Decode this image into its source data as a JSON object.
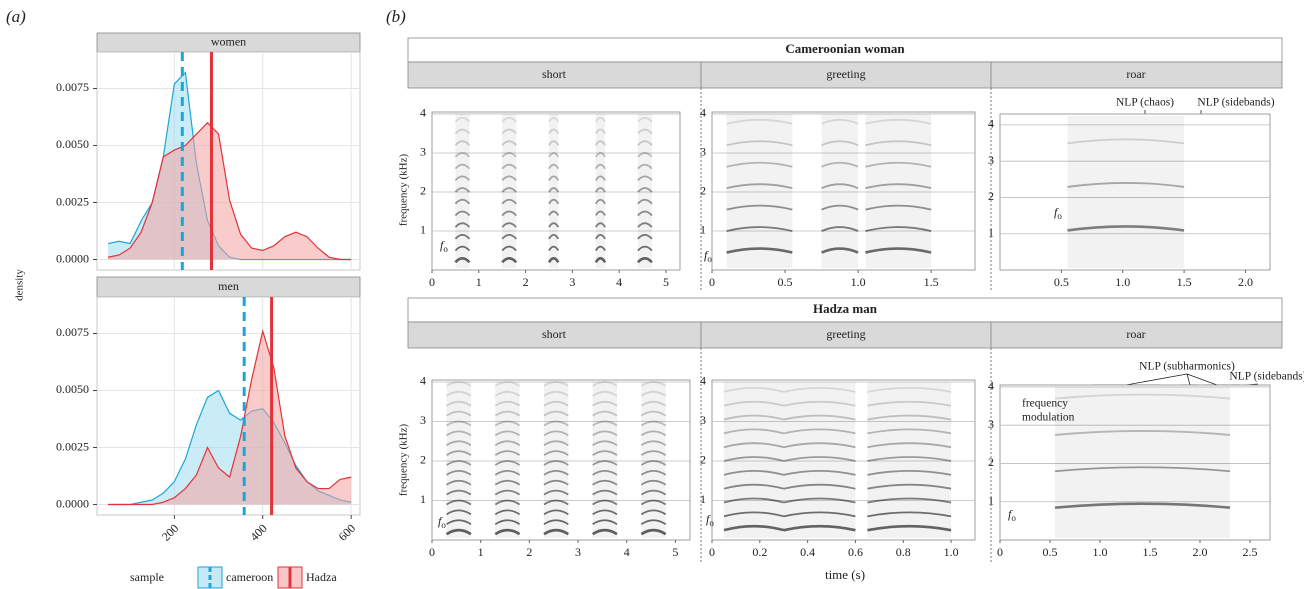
{
  "panel_labels": [
    "(a)",
    "(b)"
  ],
  "f0_symbol": {
    "base": "f",
    "sub": "o"
  },
  "panel_b": {
    "rows": [
      "Cameroonian woman",
      "Hadza man"
    ],
    "columns": [
      "short",
      "greeting",
      "roar"
    ],
    "x_label": "time (s)",
    "y_label": "frequency (kHz)"
  },
  "chart_data": [
    {
      "type": "density",
      "facet": "women",
      "y_label": "density",
      "legend_title": "sample",
      "x": [
        50,
        75,
        100,
        125,
        150,
        175,
        200,
        225,
        250,
        275,
        300,
        325,
        350,
        375,
        400,
        425,
        450,
        475,
        500,
        525,
        550,
        575,
        600
      ],
      "xlim": [
        25,
        620
      ],
      "xticks": [
        200,
        400,
        600
      ],
      "ylim": [
        -0.00046,
        0.0091
      ],
      "yticks": [
        {
          "value": 0,
          "label": "0.0000"
        },
        {
          "value": 0.0025,
          "label": "0.0025"
        },
        {
          "value": 0.005,
          "label": "0.0050"
        },
        {
          "value": 0.0075,
          "label": "0.0075"
        }
      ],
      "grid": true,
      "series": [
        {
          "name": "cameroon",
          "color": "#1ba6d8",
          "fill": "#9fdcf0",
          "line_style": "dashed",
          "mean": 218,
          "values": [
            0.0007,
            0.0008,
            0.0007,
            0.0017,
            0.0025,
            0.0045,
            0.0077,
            0.0082,
            0.0042,
            0.0017,
            0.0006,
            0.0001,
            0,
            0,
            0,
            0,
            0,
            0,
            0,
            0,
            0,
            0,
            0
          ]
        },
        {
          "name": "Hadza",
          "color": "#e3323a",
          "fill": "#f4a3a3",
          "line_style": "solid",
          "mean": 284,
          "values": [
            0.0001,
            0.0002,
            0.0005,
            0.0012,
            0.0025,
            0.0045,
            0.0048,
            0.005,
            0.0055,
            0.006,
            0.0055,
            0.0026,
            0.0011,
            0.0005,
            0.0004,
            0.0006,
            0.001,
            0.0012,
            0.001,
            0.0005,
            0.0001,
            0,
            0
          ]
        }
      ]
    },
    {
      "type": "density",
      "facet": "men",
      "x": [
        50,
        75,
        100,
        125,
        150,
        175,
        200,
        225,
        250,
        275,
        300,
        325,
        350,
        375,
        400,
        425,
        450,
        475,
        500,
        525,
        550,
        575,
        600
      ],
      "xlim": [
        25,
        620
      ],
      "xticks": [
        200,
        400,
        600
      ],
      "ylim": [
        -0.00046,
        0.0091
      ],
      "yticks": [
        {
          "value": 0,
          "label": "0.0000"
        },
        {
          "value": 0.0025,
          "label": "0.0025"
        },
        {
          "value": 0.005,
          "label": "0.0050"
        },
        {
          "value": 0.0075,
          "label": "0.0075"
        }
      ],
      "grid": true,
      "series": [
        {
          "color": "#1ba6d8",
          "fill": "#9fdcf0",
          "line_style": "dashed",
          "mean": 358,
          "values": [
            0,
            0,
            0,
            0.0001,
            0.0002,
            0.0005,
            0.001,
            0.002,
            0.0035,
            0.0047,
            0.005,
            0.004,
            0.0037,
            0.0041,
            0.0042,
            0.0036,
            0.0027,
            0.0017,
            0.001,
            0.0006,
            0.0004,
            0.0002,
            0.0001
          ]
        },
        {
          "color": "#e3323a",
          "fill": "#f4a3a3",
          "line_style": "solid",
          "mean": 420,
          "values": [
            0,
            0,
            0,
            0,
            0,
            0.0001,
            0.0003,
            0.0007,
            0.0013,
            0.0025,
            0.0016,
            0.0012,
            0.003,
            0.0055,
            0.0076,
            0.006,
            0.003,
            0.0016,
            0.001,
            0.0007,
            0.0007,
            0.0011,
            0.0012
          ]
        }
      ]
    },
    {
      "type": "spectrogram",
      "xlim": [
        0,
        5.3
      ],
      "xticks": [
        0,
        1,
        2,
        3,
        4,
        5
      ],
      "ylim": [
        0,
        4.05
      ],
      "yticks": [
        1,
        2,
        3,
        4
      ],
      "f0_khz": 0.3,
      "syllables": [
        [
          0.5,
          0.8
        ],
        [
          1.5,
          1.8
        ],
        [
          2.5,
          2.7
        ],
        [
          3.5,
          3.7
        ],
        [
          4.4,
          4.7
        ]
      ]
    },
    {
      "type": "spectrogram",
      "xlim": [
        0,
        1.8
      ],
      "xticks": [
        0,
        0.5,
        {
          "value": 1,
          "label": "1.0"
        },
        1.5
      ],
      "ylim": [
        0,
        4.05
      ],
      "yticks": [
        1,
        2,
        3,
        4
      ],
      "f0_khz": 0.55,
      "syllables": [
        [
          0.1,
          0.55
        ],
        [
          0.75,
          1.0
        ],
        [
          1.05,
          1.5
        ]
      ]
    },
    {
      "type": "spectrogram",
      "xlim": [
        0,
        2.2
      ],
      "xticks": [
        0.5,
        {
          "value": 1,
          "label": "1.0"
        },
        1.5,
        {
          "value": 2,
          "label": "2.0"
        }
      ],
      "ylim": [
        0,
        4.3
      ],
      "yticks": [
        1,
        2,
        3,
        4
      ],
      "f0_khz": 1.2,
      "syllables": [
        [
          0.55,
          1.5
        ]
      ],
      "annotations": [
        "NLP (chaos)",
        "NLP (sidebands)"
      ]
    },
    {
      "type": "spectrogram",
      "xlim": [
        0,
        5.3
      ],
      "xticks": [
        0,
        1,
        2,
        3,
        4,
        5
      ],
      "ylim": [
        0,
        4.05
      ],
      "yticks": [
        1,
        2,
        3,
        4
      ],
      "f0_khz": 0.25,
      "syllables": [
        [
          0.3,
          0.8
        ],
        [
          1.3,
          1.8
        ],
        [
          2.3,
          2.8
        ],
        [
          3.3,
          3.8
        ],
        [
          4.3,
          4.8
        ]
      ]
    },
    {
      "type": "spectrogram",
      "xlim": [
        0,
        1.1
      ],
      "xticks": [
        0,
        0.2,
        0.4,
        0.6,
        0.8,
        {
          "value": 1,
          "label": "1.0"
        }
      ],
      "ylim": [
        0,
        4.05
      ],
      "yticks": [
        1,
        2,
        3,
        4
      ],
      "f0_khz": 0.35,
      "syllables": [
        [
          0.05,
          0.3
        ],
        [
          0.3,
          0.6
        ],
        [
          0.65,
          1.0
        ]
      ]
    },
    {
      "type": "spectrogram",
      "xlim": [
        0,
        2.7
      ],
      "xticks": [
        0,
        0.5,
        {
          "value": 1,
          "label": "1.0"
        },
        1.5,
        {
          "value": 2,
          "label": "2.0"
        },
        2.5
      ],
      "ylim": [
        0,
        4.05
      ],
      "yticks": [
        1,
        2,
        3,
        4
      ],
      "f0_khz": 0.95,
      "syllables": [
        [
          0.55,
          2.3
        ]
      ],
      "annotations": [
        "NLP (subharmonics)",
        "NLP (sidebands)",
        "frequency",
        "modulation"
      ]
    }
  ]
}
